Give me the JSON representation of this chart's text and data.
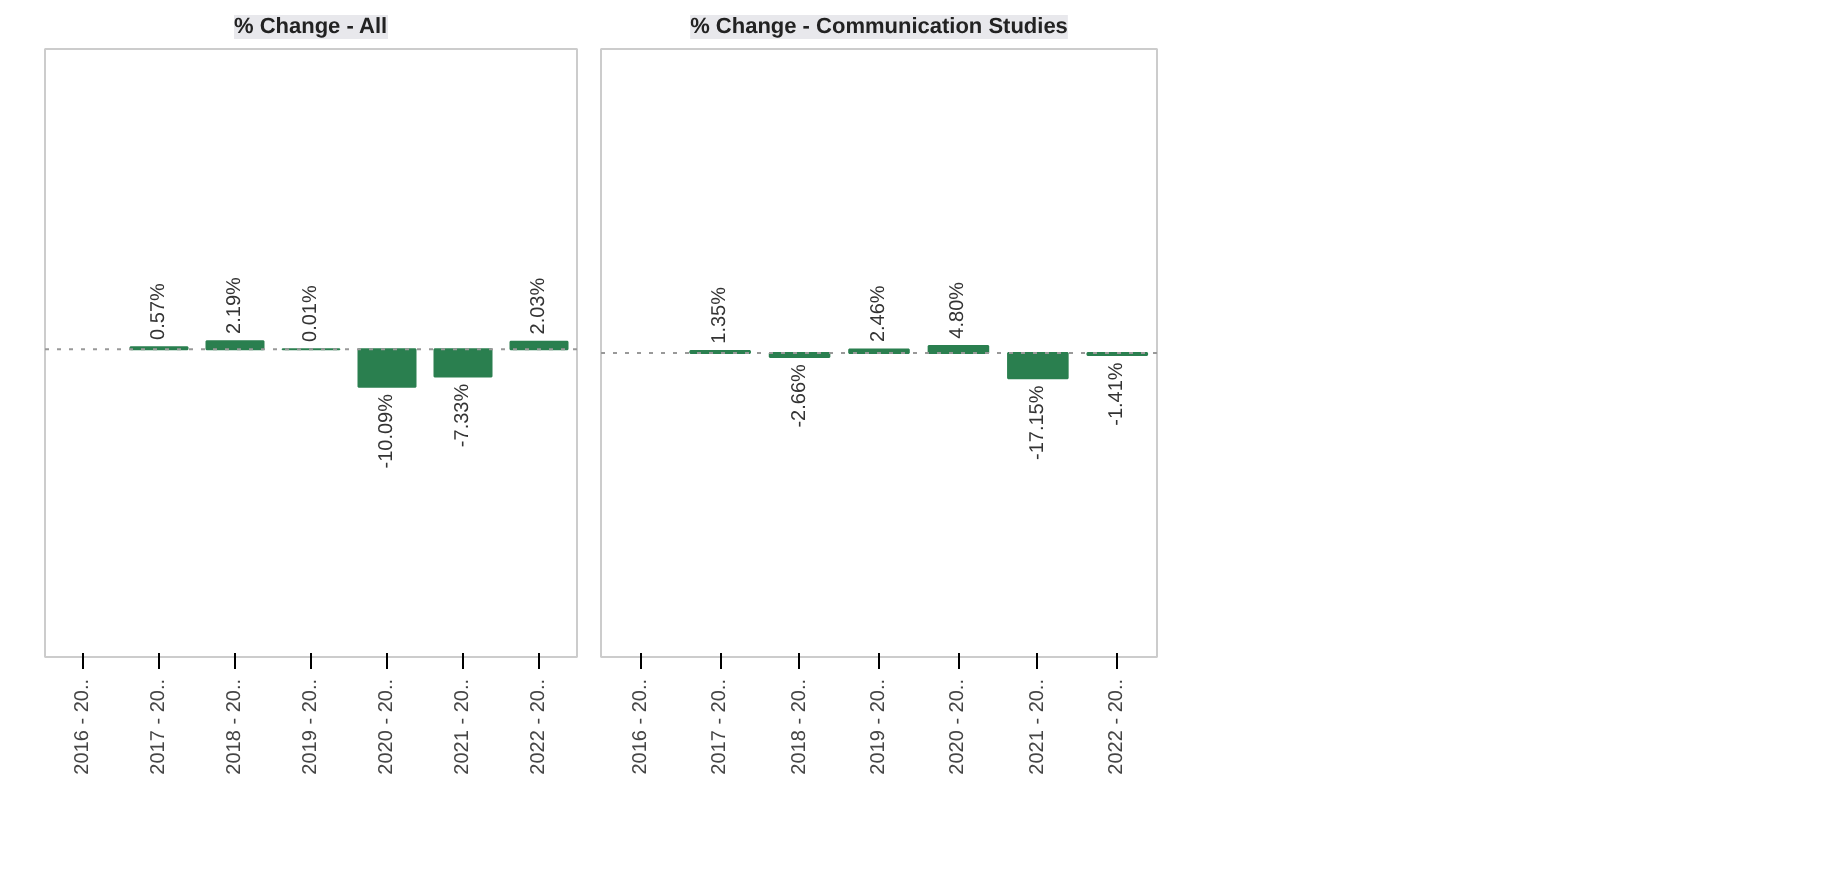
{
  "chart_data": [
    {
      "type": "bar",
      "title": "% Change - All",
      "categories": [
        "2016 - 20..",
        "2017 - 20..",
        "2018 - 20..",
        "2019 - 20..",
        "2020 - 20..",
        "2021 - 20..",
        "2022 - 20.."
      ],
      "values": [
        null,
        0.57,
        2.19,
        0.01,
        -10.09,
        -7.33,
        2.03
      ],
      "value_labels": [
        null,
        "0.57%",
        "2.19%",
        "0.01%",
        "-10.09%",
        "-7.33%",
        "2.03%"
      ],
      "color": "#2a7f4f",
      "ylim": [
        -83,
        81
      ],
      "tick_labels": "x",
      "ref_lines": [
        {
          "axis": "y",
          "value": 0,
          "color": "#999999",
          "line_style": "dotted"
        }
      ]
    },
    {
      "type": "bar",
      "title": "% Change - Communication Studies",
      "categories": [
        "2016 - 20..",
        "2017 - 20..",
        "2018 - 20..",
        "2019 - 20..",
        "2020 - 20..",
        "2021 - 20..",
        "2022 - 20.."
      ],
      "values": [
        null,
        1.35,
        -2.66,
        2.46,
        4.8,
        -17.15,
        -1.41
      ],
      "value_labels": [
        null,
        "1.35%",
        "-2.66%",
        "2.46%",
        "4.80%",
        "-17.15%",
        "-1.41%"
      ],
      "color": "#2a7f4f",
      "ylim": [
        -207,
        207
      ],
      "tick_labels": "x",
      "ref_lines": [
        {
          "axis": "y",
          "value": 0,
          "color": "#999999",
          "line_style": "dotted"
        }
      ]
    }
  ]
}
